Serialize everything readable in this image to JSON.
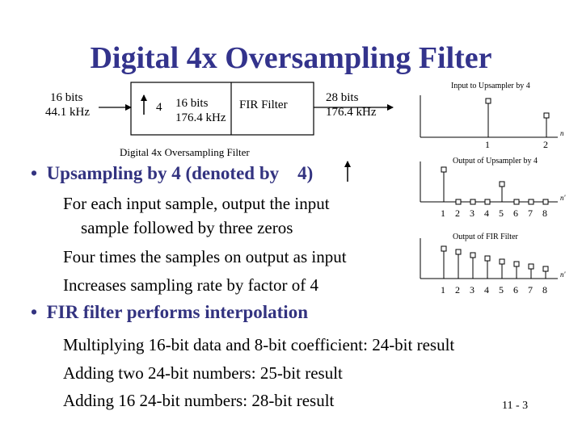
{
  "title": "Digital 4x Oversampling Filter",
  "block_diagram": {
    "input_label": [
      "16 bits",
      "44.1 kHz"
    ],
    "upsampler_factor": "4",
    "mid_label": [
      "16 bits",
      "176.4 kHz"
    ],
    "fir_label": "FIR Filter",
    "output_label": [
      "28 bits",
      "176.4 kHz"
    ],
    "caption": "Digital 4x Oversampling Filter"
  },
  "bullets": [
    {
      "text_before_arrow": "Upsampling by 4 (denoted by",
      "text_after_arrow": "4)",
      "sub": [
        "For each input sample, output the input",
        "sample followed by three zeros",
        "Four times the samples on output as input",
        "Increases sampling rate by factor of 4"
      ]
    },
    {
      "text": "FIR filter performs interpolation",
      "sub": [
        "Multiplying 16-bit data and 8-bit coefficient: 24-bit result",
        "Adding two 24-bit numbers: 25-bit result",
        "Adding 16 24-bit numbers: 28-bit result"
      ]
    }
  ],
  "plots": [
    {
      "title": "Input to Upsampler by 4",
      "axis_var": "n",
      "ticks": [
        "1",
        "2"
      ]
    },
    {
      "title": "Output of Upsampler by 4",
      "axis_var": "n'",
      "ticks": [
        "1",
        "2",
        "3",
        "4",
        "5",
        "6",
        "7",
        "8"
      ]
    },
    {
      "title": "Output of FIR Filter",
      "axis_var": "n'",
      "ticks": [
        "1",
        "2",
        "3",
        "4",
        "5",
        "6",
        "7",
        "8"
      ]
    }
  ],
  "slide_number": "11 - 3"
}
